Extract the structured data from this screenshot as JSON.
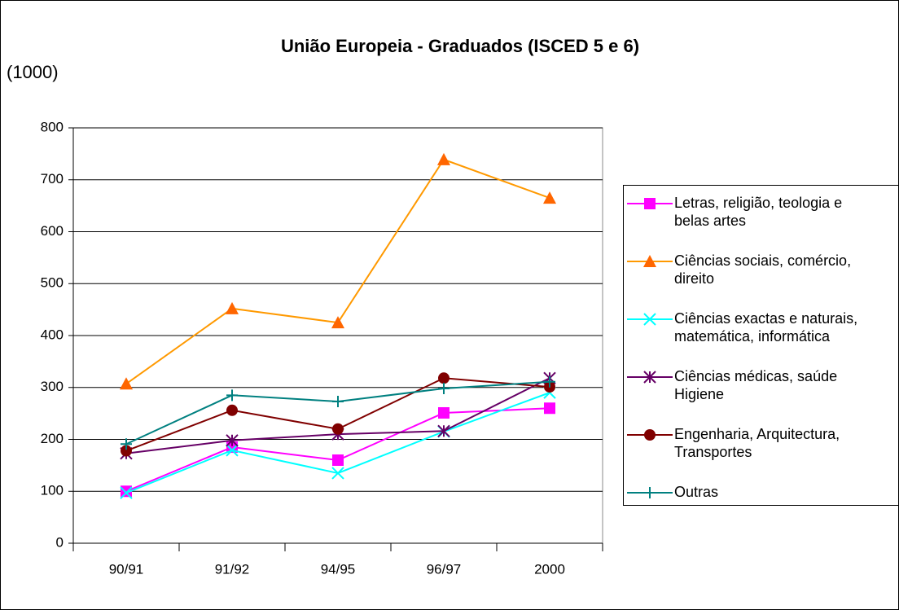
{
  "chart_data": {
    "type": "line",
    "title": "União Europeia - Graduados (ISCED 5 e 6)",
    "y_label": "(1000)",
    "categories": [
      "90/91",
      "91/92",
      "94/95",
      "96/97",
      "2000"
    ],
    "ylim": [
      0,
      800
    ],
    "yticks": [
      0,
      100,
      200,
      300,
      400,
      500,
      600,
      700,
      800
    ],
    "grid": true,
    "legend": "right",
    "series": [
      {
        "name": "Letras, religião, teologia e\nbelas artes",
        "color": "#FF00FF",
        "marker": "square",
        "values": [
          100,
          185,
          160,
          251,
          260
        ]
      },
      {
        "name": "Ciências sociais, comércio,\ndireito",
        "color": "#FF9900",
        "marker": "triangle",
        "values": [
          307,
          452,
          425,
          739,
          665
        ]
      },
      {
        "name": "Ciências exactas e naturais,\nmatemática, informática",
        "color": "#00FFFF",
        "marker": "x",
        "values": [
          97,
          179,
          135,
          215,
          290
        ]
      },
      {
        "name": "Ciências médicas, saúde\nHigiene",
        "color": "#660066",
        "marker": "star",
        "values": [
          173,
          198,
          210,
          216,
          318
        ]
      },
      {
        "name": "Engenharia, Arquitectura,\nTransportes",
        "color": "#800000",
        "marker": "circle",
        "values": [
          178,
          256,
          220,
          318,
          301
        ]
      },
      {
        "name": "Outras",
        "color": "#008080",
        "marker": "plus",
        "values": [
          191,
          285,
          273,
          298,
          311
        ]
      }
    ]
  }
}
